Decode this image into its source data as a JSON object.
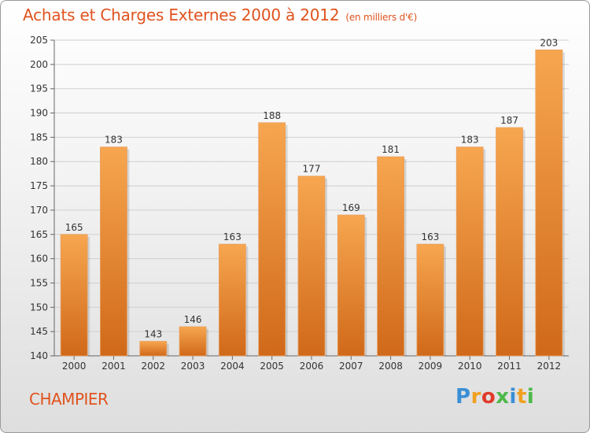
{
  "title": "Achats et Charges Externes 2000 à 2012",
  "unit_label": "(en milliers d'€)",
  "location": "CHAMPIER",
  "brand": {
    "letters": [
      "P",
      "r",
      "o",
      "x",
      "i",
      "t",
      "i"
    ],
    "colors": [
      "#3a8fd6",
      "#f0a020",
      "#e03a2a",
      "#4cb848",
      "#3a8fd6",
      "#f0a020",
      "#4cb848"
    ]
  },
  "colors": {
    "bar_top": "#f7a650",
    "bar_bottom": "#d0691a",
    "text": "#e0531e"
  },
  "chart_data": {
    "type": "bar",
    "categories": [
      "2000",
      "2001",
      "2002",
      "2003",
      "2004",
      "2005",
      "2006",
      "2007",
      "2008",
      "2009",
      "2010",
      "2011",
      "2012"
    ],
    "values": [
      165,
      183,
      143,
      146,
      163,
      188,
      177,
      169,
      181,
      163,
      183,
      187,
      203
    ],
    "ylim": [
      140,
      205
    ],
    "yticks": [
      140,
      145,
      150,
      155,
      160,
      165,
      170,
      175,
      180,
      185,
      190,
      195,
      200,
      205
    ],
    "grid": true,
    "title": "Achats et Charges Externes 2000 à 2012",
    "xlabel": "",
    "ylabel": ""
  }
}
